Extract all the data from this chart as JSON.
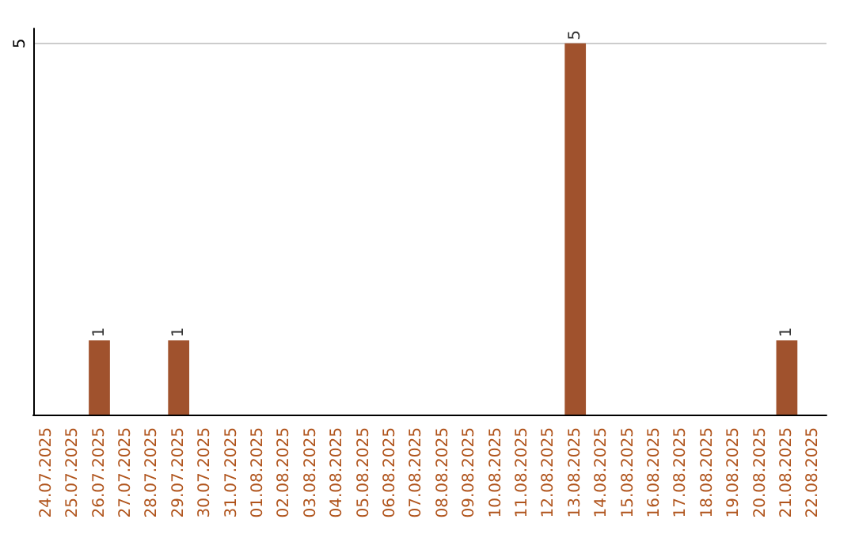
{
  "chart_data": {
    "type": "bar",
    "categories": [
      "24.07.2025",
      "25.07.2025",
      "26.07.2025",
      "27.07.2025",
      "28.07.2025",
      "29.07.2025",
      "30.07.2025",
      "31.07.2025",
      "01.08.2025",
      "02.08.2025",
      "03.08.2025",
      "04.08.2025",
      "05.08.2025",
      "06.08.2025",
      "07.08.2025",
      "08.08.2025",
      "09.08.2025",
      "10.08.2025",
      "11.08.2025",
      "12.08.2025",
      "13.08.2025",
      "14.08.2025",
      "15.08.2025",
      "16.08.2025",
      "17.08.2025",
      "18.08.2025",
      "19.08.2025",
      "20.08.2025",
      "21.08.2025",
      "22.08.2025"
    ],
    "values": [
      0,
      0,
      1,
      0,
      0,
      1,
      0,
      0,
      0,
      0,
      0,
      0,
      0,
      0,
      0,
      0,
      0,
      0,
      0,
      0,
      5,
      0,
      0,
      0,
      0,
      0,
      0,
      0,
      1,
      0
    ],
    "value_labels": [
      null,
      null,
      "1",
      null,
      null,
      "1",
      null,
      null,
      null,
      null,
      null,
      null,
      null,
      null,
      null,
      null,
      null,
      null,
      null,
      null,
      "5",
      null,
      null,
      null,
      null,
      null,
      null,
      null,
      "1",
      null
    ],
    "color": "#a0522d",
    "ylim": [
      0,
      5.2
    ],
    "yticks": [
      5
    ],
    "grid": "y"
  }
}
